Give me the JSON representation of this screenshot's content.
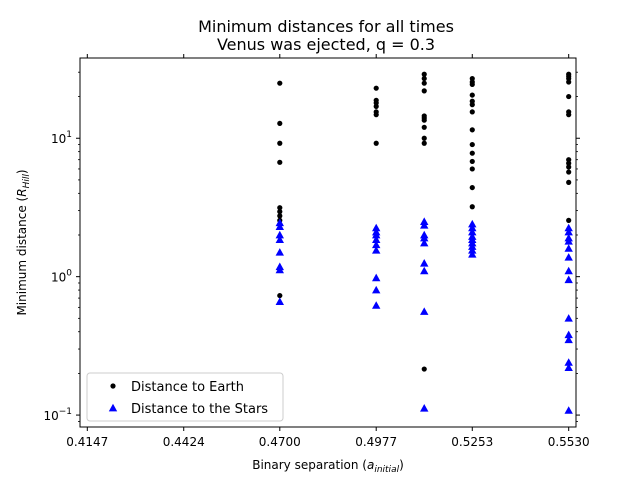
{
  "chart_data": {
    "type": "scatter",
    "title": "Minimum distances for all times",
    "subtitle": "Venus was ejected, q = 0.3",
    "xlabel": {
      "base": "Binary separation (",
      "sub": "initial",
      "prefix": "a",
      "suffix": ")"
    },
    "ylabel": {
      "base": "Minimum distance (",
      "prefix": "R",
      "sub": "Hill",
      "suffix": ")"
    },
    "x_ticks": [
      "0.4147",
      "0.4424",
      "0.4700",
      "0.4977",
      "0.5253",
      "0.5530"
    ],
    "x_tick_values": [
      0.4147,
      0.4424,
      0.47,
      0.4977,
      0.5253,
      0.553
    ],
    "xlim": [
      0.4126,
      0.5551
    ],
    "y_scale": "log",
    "ylim": [
      0.082,
      38
    ],
    "y_ticks": [
      {
        "value": 0.1,
        "base": "10",
        "exp": "−1"
      },
      {
        "value": 1,
        "base": "10",
        "exp": "0"
      },
      {
        "value": 10,
        "base": "10",
        "exp": "1"
      }
    ],
    "legend_position": "lower-left",
    "series": [
      {
        "name": "Distance to Earth",
        "marker": "dot",
        "color": "#000000",
        "points": [
          [
            0.47,
            25.0
          ],
          [
            0.47,
            12.8
          ],
          [
            0.47,
            9.2
          ],
          [
            0.47,
            6.7
          ],
          [
            0.47,
            3.15
          ],
          [
            0.47,
            2.95
          ],
          [
            0.47,
            2.75
          ],
          [
            0.47,
            2.55
          ],
          [
            0.47,
            0.73
          ],
          [
            0.4977,
            23.0
          ],
          [
            0.4977,
            18.8
          ],
          [
            0.4977,
            18.0
          ],
          [
            0.4977,
            17.0
          ],
          [
            0.4977,
            15.5
          ],
          [
            0.4977,
            14.8
          ],
          [
            0.4977,
            9.2
          ],
          [
            0.5115,
            29.0
          ],
          [
            0.5115,
            27.0
          ],
          [
            0.5115,
            25.0
          ],
          [
            0.5115,
            22.0
          ],
          [
            0.5115,
            14.5
          ],
          [
            0.5115,
            14.0
          ],
          [
            0.5115,
            13.5
          ],
          [
            0.5115,
            12.0
          ],
          [
            0.5115,
            10.0
          ],
          [
            0.5115,
            9.2
          ],
          [
            0.5115,
            0.215
          ],
          [
            0.5253,
            27.0
          ],
          [
            0.5253,
            25.5
          ],
          [
            0.5253,
            24.5
          ],
          [
            0.5253,
            20.5
          ],
          [
            0.5253,
            18.5
          ],
          [
            0.5253,
            17.5
          ],
          [
            0.5253,
            15.5
          ],
          [
            0.5253,
            11.5
          ],
          [
            0.5253,
            9.0
          ],
          [
            0.5253,
            7.8
          ],
          [
            0.5253,
            6.8
          ],
          [
            0.5253,
            6.0
          ],
          [
            0.5253,
            4.4
          ],
          [
            0.5253,
            3.2
          ],
          [
            0.553,
            29.0
          ],
          [
            0.553,
            28.0
          ],
          [
            0.553,
            27.0
          ],
          [
            0.553,
            25.5
          ],
          [
            0.553,
            20.0
          ],
          [
            0.553,
            15.5
          ],
          [
            0.553,
            14.8
          ],
          [
            0.553,
            7.0
          ],
          [
            0.553,
            6.6
          ],
          [
            0.553,
            6.2
          ],
          [
            0.553,
            5.7
          ],
          [
            0.553,
            4.8
          ],
          [
            0.553,
            2.55
          ]
        ]
      },
      {
        "name": "Distance to the Stars",
        "marker": "triangle",
        "color": "#0000ff",
        "points": [
          [
            0.47,
            2.45
          ],
          [
            0.47,
            2.3
          ],
          [
            0.47,
            2.0
          ],
          [
            0.47,
            1.85
          ],
          [
            0.47,
            1.5
          ],
          [
            0.47,
            1.18
          ],
          [
            0.47,
            1.12
          ],
          [
            0.47,
            0.66
          ],
          [
            0.4977,
            2.25
          ],
          [
            0.4977,
            2.1
          ],
          [
            0.4977,
            2.0
          ],
          [
            0.4977,
            1.85
          ],
          [
            0.4977,
            1.7
          ],
          [
            0.4977,
            1.55
          ],
          [
            0.4977,
            0.98
          ],
          [
            0.4977,
            0.8
          ],
          [
            0.4977,
            0.62
          ],
          [
            0.5115,
            2.5
          ],
          [
            0.5115,
            2.35
          ],
          [
            0.5115,
            2.0
          ],
          [
            0.5115,
            1.9
          ],
          [
            0.5115,
            1.75
          ],
          [
            0.5115,
            1.25
          ],
          [
            0.5115,
            1.1
          ],
          [
            0.5115,
            0.56
          ],
          [
            0.5115,
            0.112
          ],
          [
            0.5253,
            2.4
          ],
          [
            0.5253,
            2.25
          ],
          [
            0.5253,
            2.1
          ],
          [
            0.5253,
            1.95
          ],
          [
            0.5253,
            1.85
          ],
          [
            0.5253,
            1.75
          ],
          [
            0.5253,
            1.65
          ],
          [
            0.5253,
            1.55
          ],
          [
            0.5253,
            1.45
          ],
          [
            0.553,
            2.25
          ],
          [
            0.553,
            2.1
          ],
          [
            0.553,
            1.9
          ],
          [
            0.553,
            1.8
          ],
          [
            0.553,
            1.6
          ],
          [
            0.553,
            1.38
          ],
          [
            0.553,
            1.1
          ],
          [
            0.553,
            0.95
          ],
          [
            0.553,
            0.5
          ],
          [
            0.553,
            0.38
          ],
          [
            0.553,
            0.35
          ],
          [
            0.553,
            0.24
          ],
          [
            0.553,
            0.22
          ],
          [
            0.553,
            0.108
          ]
        ]
      }
    ]
  }
}
